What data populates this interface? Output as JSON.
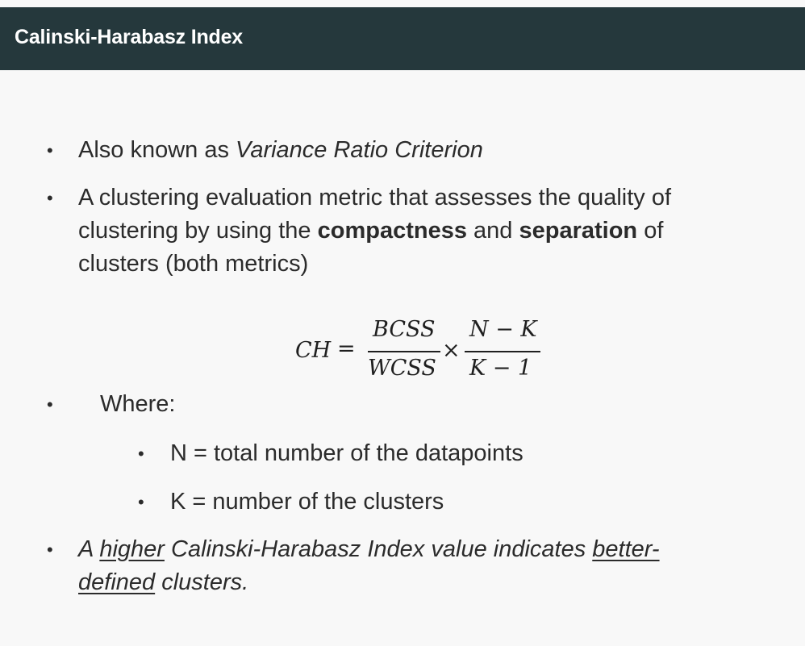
{
  "header": {
    "title": "Calinski-Harabasz Index"
  },
  "bullets": {
    "aka_prefix": "Also known as ",
    "aka_name": "Variance Ratio Criterion",
    "def_line1": "A clustering evaluation metric that assesses the quality of",
    "def_line2_a": "clustering by using the ",
    "def_line2_bold1": "compactness",
    "def_line2_b": " and ",
    "def_line2_bold2": "separation",
    "def_line2_c": " of",
    "def_line3": "clusters (both metrics)"
  },
  "formula": {
    "lhs": "CH",
    "equals": "=",
    "num1": "BCSS",
    "den1": "WCSS",
    "times": "×",
    "num2": "N − K",
    "den2": "K − 1"
  },
  "where": {
    "label": "Where:",
    "items": [
      "N = total number of the datapoints",
      "K = number of the clusters"
    ]
  },
  "conclusion": {
    "part1": "A ",
    "higher": "higher",
    "part2": " Calinski-Harabasz Index value indicates ",
    "better": "better-",
    "defined": "defined",
    "part3": " clusters."
  }
}
